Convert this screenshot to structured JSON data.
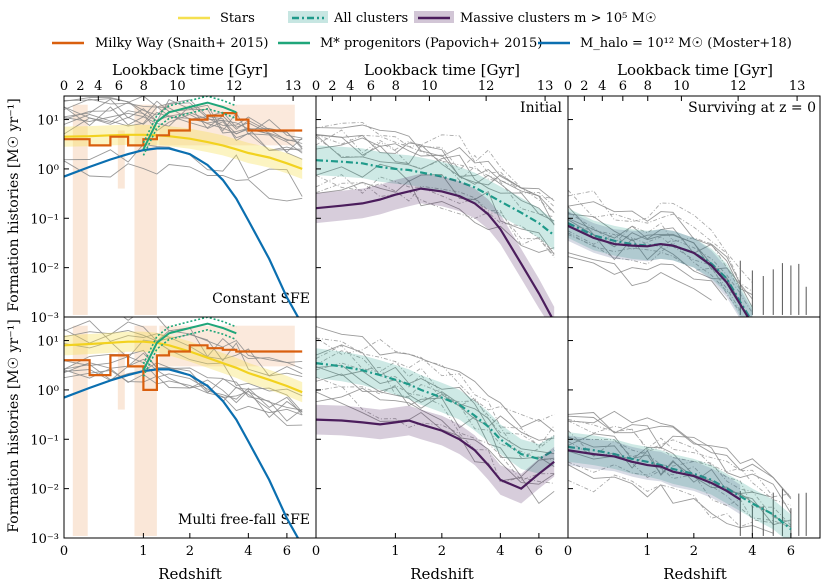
{
  "chart_data": {
    "type": "line",
    "legend": {
      "placement": "top",
      "entries": [
        {
          "key": "stars",
          "label": "Stars",
          "color": "#f5e050",
          "style": "solid"
        },
        {
          "key": "all_clusters",
          "label": "All clusters",
          "color": "#1f9a8a",
          "style": "dashdot"
        },
        {
          "key": "massive_clusters",
          "label": "Massive clusters m > 10⁵ M☉",
          "color": "#4b1d5c",
          "style": "solid"
        },
        {
          "key": "milky_way",
          "label": "Milky Way (Snaith+ 2015)",
          "color": "#d95f0e",
          "style": "solid"
        },
        {
          "key": "papovich",
          "label": "M* progenitors (Papovich+ 2015)",
          "color": "#1fa67a",
          "style": "solid"
        },
        {
          "key": "moster",
          "label": "M_halo = 10¹² M☉ (Moster+18)",
          "color": "#0b6fb0",
          "style": "solid"
        }
      ]
    },
    "xlabel": "Redshift",
    "x_top_label": "Lookback time [Gyr]",
    "ylabel": "Formation histories [M☉ yr⁻¹]",
    "x_ticks": [
      {
        "value": 0,
        "label": "0"
      },
      {
        "value": 1,
        "label": "1"
      },
      {
        "value": 2,
        "label": "2"
      },
      {
        "value": 4,
        "label": "4"
      },
      {
        "value": 6,
        "label": "6"
      }
    ],
    "x_top_ticks_gyr": [
      {
        "value": 0,
        "label": "0"
      },
      {
        "value": 2,
        "label": "2"
      },
      {
        "value": 4,
        "label": "4"
      },
      {
        "value": 6,
        "label": "6"
      },
      {
        "value": 8,
        "label": "8"
      },
      {
        "value": 10,
        "label": "10"
      },
      {
        "value": 12,
        "label": "12"
      },
      {
        "value": 13,
        "label": "13"
      }
    ],
    "y_ticks": [
      {
        "value": 10,
        "label": "10¹"
      },
      {
        "value": 1,
        "label": "10⁰"
      },
      {
        "value": 0.1,
        "label": "10⁻¹"
      },
      {
        "value": 0.01,
        "label": "10⁻²"
      },
      {
        "value": 0.001,
        "label": "10⁻³"
      }
    ],
    "xlim_log1pz": [
      0,
      2.2
    ],
    "ylim": [
      0.001,
      30
    ],
    "grid": false,
    "row_labels": [
      "Constant SFE",
      "Multi free-fall SFE"
    ],
    "column_labels": [
      "",
      "Initial",
      "Surviving at z = 0"
    ],
    "redshift_grid": [
      0,
      0.25,
      0.5,
      0.75,
      1,
      1.25,
      1.5,
      2,
      2.5,
      3,
      3.5,
      4,
      5,
      6,
      7
    ],
    "panels": [
      {
        "row": 0,
        "col": 0,
        "label": "Constant SFE",
        "series": [
          {
            "key": "stars",
            "values": [
              4.5,
              4.6,
              4.8,
              4.9,
              4.9,
              4.8,
              4.6,
              4.1,
              3.5,
              3.0,
              2.5,
              2.1,
              1.7,
              1.3,
              1.0
            ]
          },
          {
            "key": "moster",
            "values": [
              0.7,
              1.1,
              1.55,
              2.0,
              2.4,
              2.6,
              2.6,
              2.0,
              1.2,
              0.6,
              0.25,
              0.09,
              0.015,
              0.0025,
              0.0007
            ]
          },
          {
            "key": "milky_way",
            "values": [
              4.0,
              3.0,
              4.5,
              3.0,
              4.0,
              4.8,
              6.0,
              10.0,
              12.0,
              13.5,
              10.0,
              6.0,
              6.0,
              6.0,
              6.0
            ]
          },
          {
            "key": "papovich",
            "values": [
              null,
              null,
              null,
              null,
              2.5,
              9.0,
              14.0,
              18.0,
              22.0,
              18.0,
              14.0,
              null,
              null,
              null,
              null
            ]
          }
        ]
      },
      {
        "row": 0,
        "col": 1,
        "label": "Initial",
        "series": [
          {
            "key": "all_clusters",
            "values": [
              1.5,
              1.4,
              1.3,
              1.1,
              1.0,
              0.95,
              0.85,
              0.7,
              0.55,
              0.42,
              0.3,
              0.22,
              0.13,
              0.08,
              0.045
            ]
          },
          {
            "key": "massive_clusters",
            "values": [
              0.16,
              0.18,
              0.2,
              0.24,
              0.3,
              0.35,
              0.4,
              0.35,
              0.28,
              0.2,
              0.12,
              0.06,
              0.012,
              0.003,
              0.0008
            ]
          }
        ]
      },
      {
        "row": 0,
        "col": 2,
        "label": "Surviving at z = 0",
        "series": [
          {
            "key": "all_clusters",
            "values": [
              0.08,
              0.045,
              0.035,
              0.03,
              0.028,
              0.03,
              0.028,
              0.02,
              0.012,
              0.006,
              0.002,
              0.0008,
              null,
              null,
              null
            ]
          },
          {
            "key": "massive_clusters",
            "values": [
              0.07,
              0.04,
              0.03,
              0.028,
              0.027,
              0.03,
              0.028,
              0.02,
              0.011,
              0.005,
              0.0018,
              0.0007,
              null,
              null,
              null
            ]
          }
        ]
      },
      {
        "row": 1,
        "col": 0,
        "label": "Multi free-fall SFE",
        "series": [
          {
            "key": "stars",
            "values": [
              8.0,
              8.5,
              9.0,
              9.5,
              9.5,
              9.0,
              8.0,
              6.0,
              4.5,
              3.5,
              2.8,
              2.2,
              1.6,
              1.2,
              0.9
            ]
          },
          {
            "key": "moster",
            "values": [
              0.7,
              1.1,
              1.55,
              2.0,
              2.4,
              2.6,
              2.6,
              2.0,
              1.2,
              0.6,
              0.25,
              0.09,
              0.015,
              0.0025,
              0.0007
            ]
          },
          {
            "key": "milky_way",
            "values": [
              4.0,
              2.0,
              5.0,
              3.0,
              1.0,
              5.0,
              6.0,
              8.0,
              7.0,
              6.5,
              6.0,
              6.0,
              6.0,
              6.0,
              6.0
            ]
          },
          {
            "key": "papovich",
            "values": [
              null,
              null,
              null,
              null,
              2.5,
              9.0,
              14.0,
              18.0,
              22.0,
              18.0,
              14.0,
              null,
              null,
              null,
              null
            ]
          }
        ]
      },
      {
        "row": 1,
        "col": 1,
        "label": "",
        "series": [
          {
            "key": "all_clusters",
            "values": [
              3.5,
              3.0,
              2.5,
              2.0,
              1.6,
              1.3,
              1.0,
              0.7,
              0.5,
              0.3,
              0.18,
              0.1,
              0.05,
              0.04,
              0.06
            ]
          },
          {
            "key": "massive_clusters",
            "values": [
              0.25,
              0.24,
              0.22,
              0.2,
              0.22,
              0.24,
              0.2,
              0.15,
              0.1,
              0.06,
              0.03,
              0.015,
              0.01,
              0.02,
              0.035
            ]
          }
        ]
      },
      {
        "row": 1,
        "col": 2,
        "label": "",
        "series": [
          {
            "key": "all_clusters",
            "values": [
              0.07,
              0.06,
              0.05,
              0.04,
              0.035,
              0.03,
              0.025,
              0.02,
              0.015,
              0.01,
              0.007,
              0.005,
              0.003,
              0.0015,
              null
            ]
          },
          {
            "key": "massive_clusters",
            "values": [
              0.06,
              0.05,
              0.045,
              0.035,
              0.03,
              0.028,
              0.022,
              0.018,
              0.013,
              0.009,
              0.006,
              null,
              null,
              null,
              null
            ]
          }
        ]
      }
    ]
  }
}
